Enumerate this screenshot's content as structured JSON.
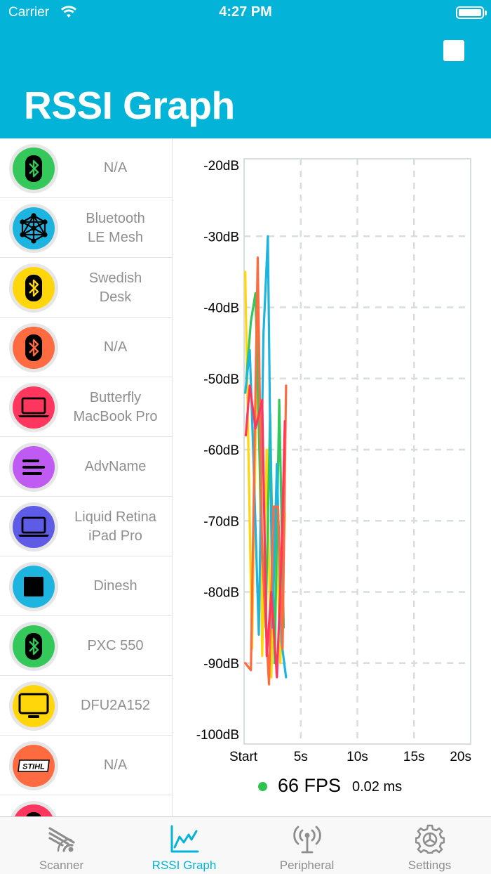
{
  "status_bar": {
    "carrier": "Carrier",
    "time": "4:27 PM"
  },
  "header": {
    "title": "RSSI Graph"
  },
  "devices": [
    {
      "name": "N/A",
      "icon": "bluetooth-icon",
      "color": "#34c759",
      "glyph": "#000000"
    },
    {
      "name": "Bluetooth\nLE Mesh",
      "icon": "mesh-network-icon",
      "color": "#1eb4e0",
      "glyph": "#000000"
    },
    {
      "name": "Swedish\nDesk",
      "icon": "bluetooth-icon",
      "color": "#ffd60a",
      "glyph": "#000000"
    },
    {
      "name": "N/A",
      "icon": "bluetooth-icon",
      "color": "#ff6b40",
      "glyph": "#000000"
    },
    {
      "name": "Butterfly\nMacBook Pro",
      "icon": "laptop-icon",
      "color": "#ff375f",
      "glyph": "#000000"
    },
    {
      "name": "AdvName",
      "icon": "list-icon",
      "color": "#bf5af2",
      "glyph": "#000000"
    },
    {
      "name": "Liquid Retina\niPad Pro",
      "icon": "laptop-icon",
      "color": "#5e5ce6",
      "glyph": "#000000"
    },
    {
      "name": "Dinesh",
      "icon": "square-chip-icon",
      "color": "#1eb4e0",
      "glyph": "#000000"
    },
    {
      "name": "PXC 550",
      "icon": "bluetooth-icon",
      "color": "#34c759",
      "glyph": "#000000"
    },
    {
      "name": "DFU2A152",
      "icon": "monitor-icon",
      "color": "#ffd60a",
      "glyph": "#000000"
    },
    {
      "name": "N/A",
      "icon": "stihl-logo-icon",
      "color": "#ff6b40",
      "glyph": "#000000"
    },
    {
      "name": "",
      "icon": "bluetooth-icon",
      "color": "#ff375f",
      "glyph": "#000000"
    }
  ],
  "chart_data": {
    "type": "line",
    "ylim": [
      -100,
      -20
    ],
    "xlim": [
      0,
      20
    ],
    "y_ticks": [
      "-20dB",
      "-30dB",
      "-40dB",
      "-50dB",
      "-60dB",
      "-70dB",
      "-80dB",
      "-90dB",
      "-100dB"
    ],
    "y_tick_values": [
      -20,
      -30,
      -40,
      -50,
      -60,
      -70,
      -80,
      -90,
      -100
    ],
    "x_ticks": [
      "Start",
      "5s",
      "10s",
      "15s",
      "20s"
    ],
    "x_tick_values": [
      0,
      5,
      10,
      15,
      20
    ],
    "grid": true,
    "series": [
      {
        "color": "#ffd60a",
        "x": [
          0.1,
          0.4,
          0.7,
          1.2,
          1.6,
          2.0,
          2.4,
          2.8,
          3.2,
          3.6
        ],
        "y": [
          -35,
          -62,
          -88,
          -40,
          -89,
          -60,
          -92,
          -68,
          -90,
          -69
        ]
      },
      {
        "color": "#34c759",
        "x": [
          0.2,
          0.6,
          1.0,
          1.5,
          1.9,
          2.3,
          2.7,
          3.1,
          3.5
        ],
        "y": [
          -50,
          -42,
          -38,
          -70,
          -85,
          -55,
          -90,
          -53,
          -85
        ]
      },
      {
        "color": "#1eb4e0",
        "x": [
          0.1,
          0.5,
          0.8,
          1.3,
          1.7,
          2.1,
          2.5,
          2.9,
          3.3,
          3.7
        ],
        "y": [
          -52,
          -46,
          -60,
          -86,
          -44,
          -30,
          -85,
          -62,
          -87,
          -92
        ]
      },
      {
        "color": "#ff6b40",
        "x": [
          0.1,
          0.6,
          1.2,
          1.6,
          2.2,
          2.6,
          3.0,
          3.4,
          3.7
        ],
        "y": [
          -90,
          -91,
          -33,
          -75,
          -93,
          -68,
          -68,
          -88,
          -51
        ]
      },
      {
        "color": "#ff375f",
        "x": [
          0.15,
          0.5,
          1.0,
          1.6,
          2.0,
          2.4,
          2.9,
          3.3,
          3.6
        ],
        "y": [
          -58,
          -51,
          -57,
          -53,
          -89,
          -80,
          -92,
          -75,
          -56
        ]
      }
    ]
  },
  "fps": {
    "value": "66 FPS",
    "ms": "0.02 ms",
    "dot_color": "#2ec24f"
  },
  "tabs": [
    {
      "label": "Scanner",
      "icon": "scanner-icon",
      "active": false
    },
    {
      "label": "RSSI Graph",
      "icon": "graph-icon",
      "active": true
    },
    {
      "label": "Peripheral",
      "icon": "antenna-icon",
      "active": false
    },
    {
      "label": "Settings",
      "icon": "gear-icon",
      "active": false
    }
  ]
}
